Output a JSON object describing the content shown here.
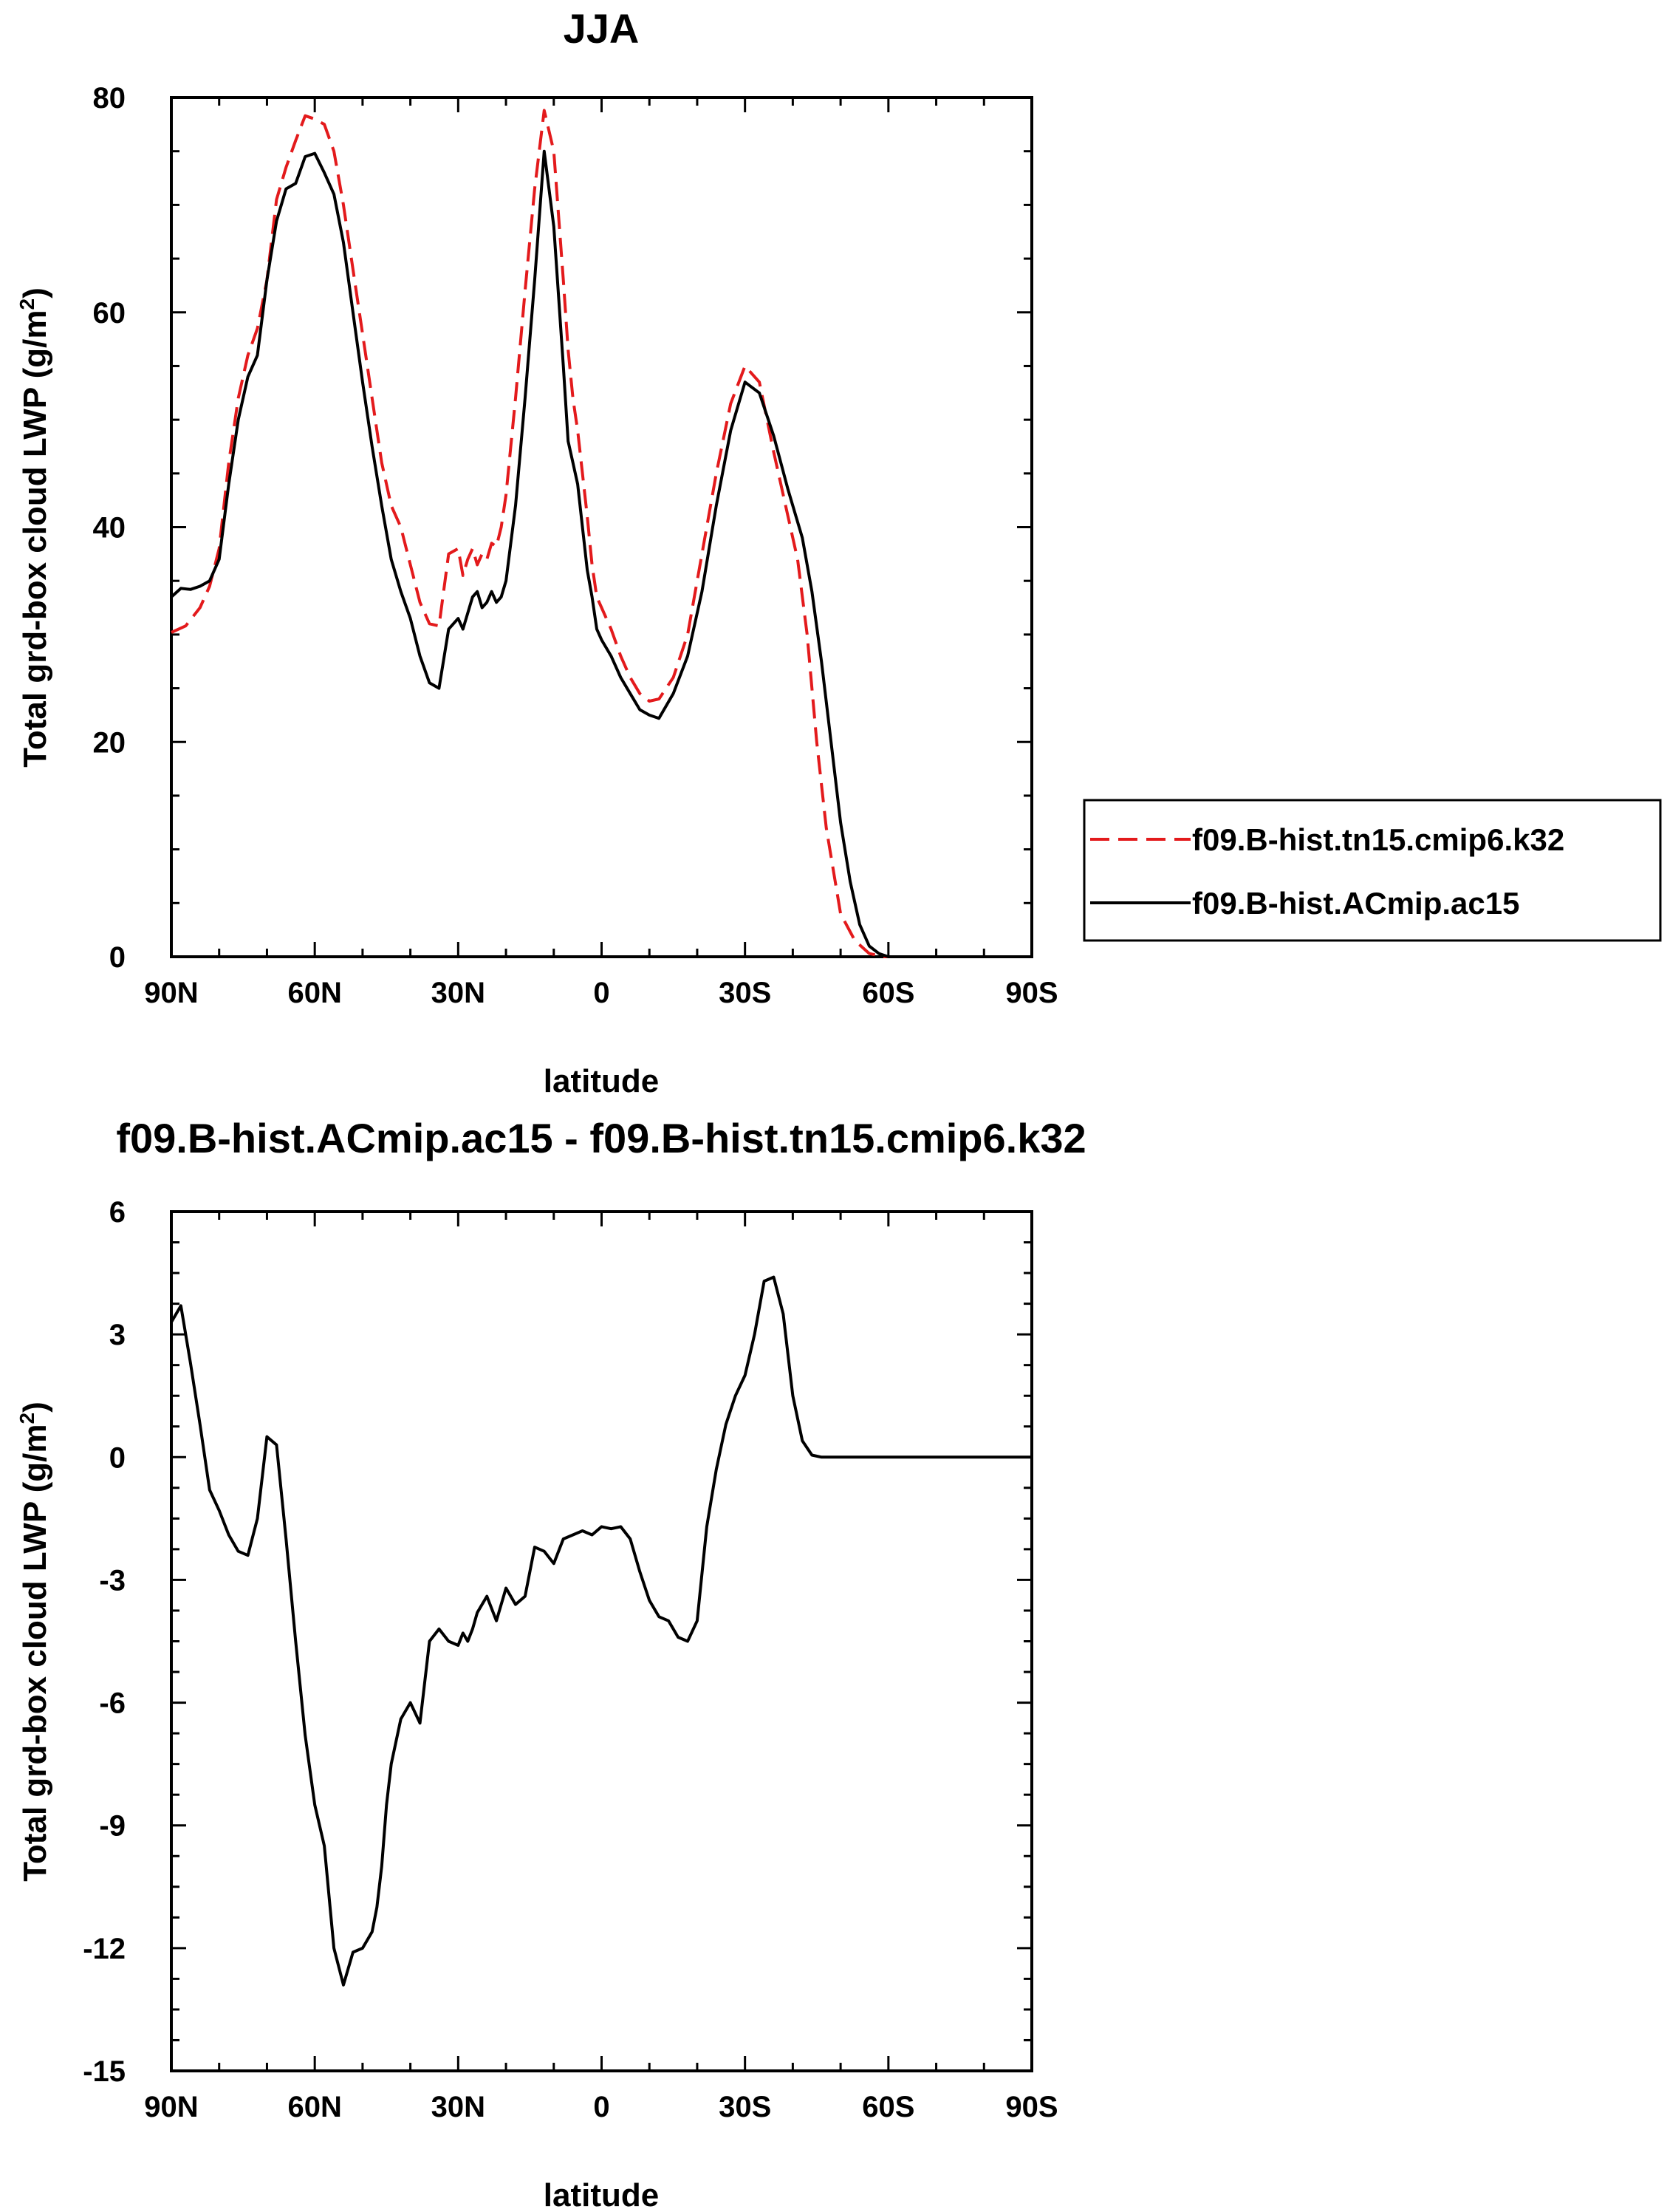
{
  "chart_data": [
    {
      "type": "line",
      "title": "JJA",
      "xlabel": "latitude",
      "ylabel": "Total grd-box cloud LWP (g/m²)",
      "ylabel_main": "Total grd-box cloud LWP (g/m",
      "ylabel_sup": "2",
      "ylabel_close": ")",
      "xlim": [
        90,
        -90
      ],
      "ylim": [
        0,
        80
      ],
      "x_ticks": [
        90,
        60,
        30,
        0,
        -30,
        -60,
        -90
      ],
      "x_tick_labels": [
        "90N",
        "60N",
        "30N",
        "0",
        "30S",
        "60S",
        "90S"
      ],
      "y_ticks": [
        0,
        20,
        40,
        60,
        80
      ],
      "y_tick_labels": [
        "0",
        "20",
        "40",
        "60",
        "80"
      ],
      "legend_position": "right",
      "series": [
        {
          "name": "f09.B-hist.tn15.cmip6.k32",
          "color": "#e31a1c",
          "dash": "dashed",
          "x": [
            90,
            87,
            84,
            82,
            80,
            78,
            76,
            74,
            72,
            70,
            68,
            66,
            64,
            62,
            60,
            58,
            56,
            54,
            52,
            50,
            48,
            46,
            44,
            42,
            40,
            38,
            36,
            34,
            32,
            30,
            29,
            28,
            27,
            26,
            25,
            24,
            23,
            22,
            21,
            20,
            18,
            16,
            14,
            12,
            10,
            8,
            7,
            6,
            5,
            4,
            3,
            2,
            1,
            0,
            -2,
            -4,
            -6,
            -8,
            -10,
            -12,
            -15,
            -18,
            -21,
            -24,
            -27,
            -30,
            -33,
            -36,
            -39,
            -41,
            -43,
            -45,
            -47,
            -50,
            -53,
            -56,
            -59,
            -62,
            -65,
            -68,
            -72,
            -76,
            -80,
            -85,
            -90
          ],
          "y": [
            30.2,
            30.8,
            32.5,
            34.5,
            38.0,
            46.0,
            52.0,
            56.0,
            58.5,
            63.0,
            70.5,
            73.5,
            76.0,
            78.3,
            78.0,
            77.5,
            75.0,
            70.0,
            64.0,
            58.0,
            52.0,
            46.0,
            42.0,
            40.0,
            36.5,
            33.0,
            31.0,
            30.8,
            37.5,
            38.0,
            35.5,
            37.0,
            38.0,
            36.5,
            37.5,
            37.0,
            38.5,
            38.2,
            40.0,
            43.0,
            52.0,
            62.0,
            71.5,
            78.8,
            75.0,
            63.0,
            56.5,
            52.0,
            49.0,
            45.0,
            41.0,
            36.5,
            33.5,
            32.5,
            30.5,
            28.0,
            26.0,
            24.5,
            23.8,
            24.0,
            26.0,
            30.0,
            37.5,
            45.0,
            51.5,
            55.0,
            53.5,
            47.0,
            41.0,
            37.0,
            30.0,
            20.0,
            12.0,
            4.0,
            1.5,
            0.3,
            0.0,
            0.0,
            0.0,
            0.0,
            0.0,
            0.0,
            0.0,
            0.0,
            0.0
          ]
        },
        {
          "name": "f09.B-hist.ACmip.ac15",
          "color": "#000000",
          "dash": "solid",
          "x": [
            90,
            88,
            86,
            84,
            82,
            80,
            78,
            76,
            74,
            72,
            70,
            68,
            66,
            64,
            62,
            60,
            58,
            56,
            54,
            52,
            50,
            48,
            46,
            44,
            42,
            40,
            38,
            36,
            34,
            32,
            30,
            29,
            28,
            27,
            26,
            25,
            24,
            23,
            22,
            21,
            20,
            18,
            16,
            14,
            12,
            10,
            8,
            7,
            6,
            5,
            4,
            3,
            2,
            1,
            0,
            -2,
            -4,
            -6,
            -8,
            -10,
            -12,
            -15,
            -18,
            -21,
            -24,
            -27,
            -30,
            -33,
            -36,
            -39,
            -42,
            -44,
            -46,
            -48,
            -50,
            -52,
            -54,
            -56,
            -58,
            -60,
            -62,
            -65,
            -68,
            -72,
            -76,
            -80,
            -85,
            -90
          ],
          "y": [
            33.5,
            34.3,
            34.2,
            34.5,
            35.0,
            37.0,
            44.0,
            50.0,
            54.0,
            56.0,
            63.0,
            68.5,
            71.5,
            72.0,
            74.5,
            74.8,
            73.0,
            71.0,
            66.5,
            60.0,
            53.5,
            47.5,
            42.0,
            37.0,
            34.0,
            31.5,
            28.0,
            25.5,
            25.0,
            30.5,
            31.5,
            30.5,
            32.0,
            33.5,
            34.0,
            32.5,
            33.0,
            34.0,
            33.0,
            33.5,
            35.0,
            42.0,
            52.0,
            63.0,
            75.0,
            68.0,
            55.0,
            48.0,
            46.0,
            44.0,
            40.0,
            36.0,
            33.5,
            30.5,
            29.5,
            28.0,
            26.0,
            24.5,
            23.0,
            22.5,
            22.2,
            24.5,
            28.0,
            34.0,
            42.0,
            49.0,
            53.5,
            52.5,
            48.5,
            43.5,
            39.0,
            34.0,
            27.5,
            20.0,
            12.5,
            7.0,
            3.0,
            1.0,
            0.3,
            0.0,
            0.0,
            0.0,
            0.0,
            0.0,
            0.0,
            0.0,
            0.0,
            0.0
          ]
        }
      ]
    },
    {
      "type": "line",
      "title": "f09.B-hist.ACmip.ac15 - f09.B-hist.tn15.cmip6.k32",
      "xlabel": "latitude",
      "ylabel": "Total grd-box cloud LWP (g/m²)",
      "ylabel_main": "Total grd-box cloud LWP (g/m",
      "ylabel_sup": "2",
      "ylabel_close": ")",
      "xlim": [
        90,
        -90
      ],
      "ylim": [
        -15,
        6
      ],
      "x_ticks": [
        90,
        60,
        30,
        0,
        -30,
        -60,
        -90
      ],
      "x_tick_labels": [
        "90N",
        "60N",
        "30N",
        "0",
        "30S",
        "60S",
        "90S"
      ],
      "y_ticks": [
        -15,
        -12,
        -9,
        -6,
        -3,
        0,
        3,
        6
      ],
      "y_tick_labels": [
        "-15",
        "-12",
        "-9",
        "-6",
        "-3",
        "0",
        "3",
        "6"
      ],
      "series": [
        {
          "color": "#000000",
          "dash": "solid",
          "x": [
            90,
            88,
            86,
            84,
            82,
            80,
            78,
            76,
            74,
            72,
            70,
            68,
            66,
            64,
            62,
            60,
            58,
            56,
            54,
            52,
            50,
            48,
            47,
            46,
            45,
            44,
            42,
            40,
            38,
            36,
            34,
            32,
            30,
            29,
            28,
            27,
            26,
            24,
            22,
            20,
            18,
            16,
            14,
            12,
            10,
            8,
            6,
            4,
            2,
            0,
            -2,
            -4,
            -6,
            -8,
            -10,
            -12,
            -14,
            -16,
            -18,
            -20,
            -22,
            -24,
            -26,
            -28,
            -30,
            -32,
            -34,
            -36,
            -38,
            -40,
            -42,
            -44,
            -46,
            -48,
            -50,
            -52,
            -54,
            -56,
            -58,
            -60,
            -62,
            -64,
            -66,
            -68,
            -72,
            -76,
            -80,
            -85,
            -90
          ],
          "y": [
            3.3,
            3.7,
            2.3,
            0.8,
            -0.8,
            -1.3,
            -1.9,
            -2.3,
            -2.4,
            -1.5,
            0.5,
            0.3,
            -2.0,
            -4.5,
            -6.8,
            -8.5,
            -9.5,
            -12.0,
            -12.9,
            -12.1,
            -12.0,
            -11.6,
            -11.0,
            -10.0,
            -8.5,
            -7.5,
            -6.4,
            -6.0,
            -6.5,
            -4.5,
            -4.2,
            -4.5,
            -4.6,
            -4.3,
            -4.5,
            -4.2,
            -3.8,
            -3.4,
            -4.0,
            -3.2,
            -3.6,
            -3.4,
            -2.2,
            -2.3,
            -2.6,
            -2.0,
            -1.9,
            -1.8,
            -1.9,
            -1.7,
            -1.75,
            -1.7,
            -2.0,
            -2.8,
            -3.5,
            -3.9,
            -4.0,
            -4.4,
            -4.5,
            -4.0,
            -1.7,
            -0.3,
            0.8,
            1.5,
            2.0,
            3.0,
            4.3,
            4.4,
            3.5,
            1.5,
            0.4,
            0.05,
            0.0,
            0.0,
            0.0,
            0.0,
            0.0,
            0.0,
            0.0,
            0.0,
            0.0,
            0.0,
            0.0,
            0.0,
            0.0,
            0.0,
            0.0,
            0.0,
            0.0
          ]
        }
      ]
    }
  ]
}
